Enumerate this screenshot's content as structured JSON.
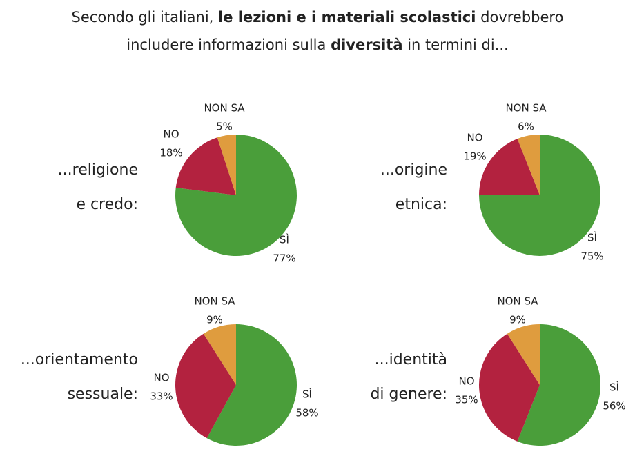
{
  "title": [
    [
      {
        "text": "Secondo gli italiani, ",
        "bold": false
      },
      {
        "text": "le lezioni e i materiali scolastici",
        "bold": true
      },
      {
        "text": " dovrebbero",
        "bold": false
      }
    ],
    [
      {
        "text": "includere informazioni sulla ",
        "bold": false
      },
      {
        "text": "diversità",
        "bold": true
      },
      {
        "text": " in termini di...",
        "bold": false
      }
    ]
  ],
  "chart_data": [
    {
      "type": "pie",
      "title": [
        "...religione",
        "e credo:"
      ],
      "categories": [
        "SÌ",
        "NO",
        "NON SA"
      ],
      "values": [
        77,
        18,
        5
      ],
      "value_labels": [
        "77%",
        "18%",
        "5%"
      ],
      "colors": [
        "#4a9e3a",
        "#b3223f",
        "#df9c3e"
      ]
    },
    {
      "type": "pie",
      "title": [
        "...origine",
        "etnica:"
      ],
      "categories": [
        "SÌ",
        "NO",
        "NON SA"
      ],
      "values": [
        75,
        19,
        6
      ],
      "value_labels": [
        "75%",
        "19%",
        "6%"
      ],
      "colors": [
        "#4a9e3a",
        "#b3223f",
        "#df9c3e"
      ]
    },
    {
      "type": "pie",
      "title": [
        "...orientamento",
        "sessuale:"
      ],
      "categories": [
        "SÌ",
        "NO",
        "NON SA"
      ],
      "values": [
        58,
        33,
        9
      ],
      "value_labels": [
        "58%",
        "33%",
        "9%"
      ],
      "colors": [
        "#4a9e3a",
        "#b3223f",
        "#df9c3e"
      ]
    },
    {
      "type": "pie",
      "title": [
        "...identità",
        "di genere:"
      ],
      "categories": [
        "SÌ",
        "NO",
        "NON SA"
      ],
      "values": [
        56,
        35,
        9
      ],
      "value_labels": [
        "56%",
        "35%",
        "9%"
      ],
      "colors": [
        "#4a9e3a",
        "#b3223f",
        "#df9c3e"
      ]
    }
  ]
}
